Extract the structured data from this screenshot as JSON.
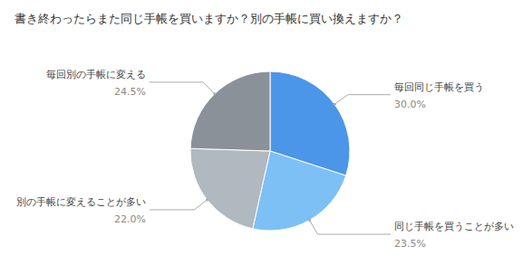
{
  "chart_data": {
    "type": "pie",
    "title": "書き終わったらまた同じ手帳を買いますか？別の手帳に買い換えますか？",
    "categories": [
      "毎回同じ手帳を買う",
      "同じ手帳を買うことが多い",
      "別の手帳に変えることが多い",
      "毎回別の手帳に変える"
    ],
    "values": [
      30.0,
      23.5,
      22.0,
      24.5
    ],
    "value_labels": [
      "30.0%",
      "23.5%",
      "22.0%",
      "24.5%"
    ],
    "colors": [
      "#4B96E8",
      "#7DC0F5",
      "#B0B8C0",
      "#8A9199"
    ]
  }
}
